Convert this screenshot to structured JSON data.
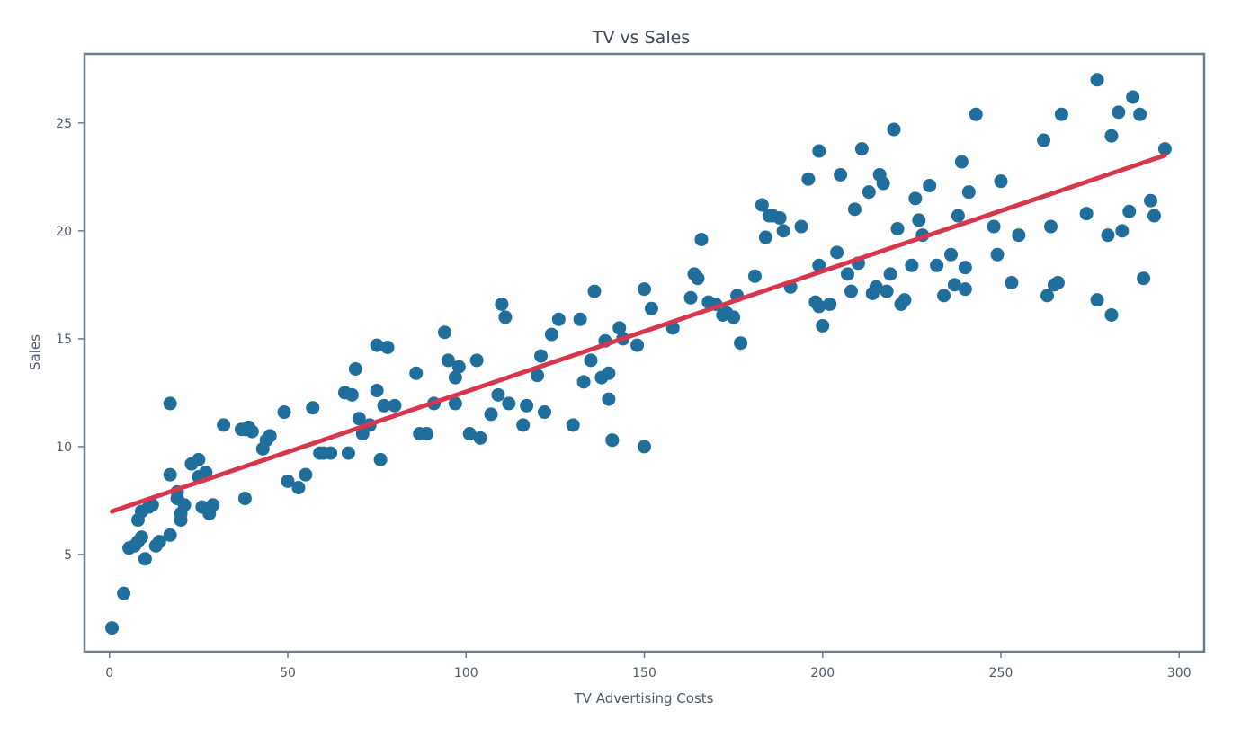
{
  "chart_data": {
    "type": "scatter",
    "title": "TV vs Sales",
    "xlabel": "TV Advertising Costs",
    "ylabel": "Sales",
    "xlim": [
      -7,
      307
    ],
    "ylim": [
      0.5,
      28.2
    ],
    "xticks": [
      0,
      50,
      100,
      150,
      200,
      250,
      300
    ],
    "yticks": [
      5,
      10,
      15,
      20,
      25
    ],
    "grid": false,
    "legend": "none",
    "colors": {
      "points": "#1f6e9c",
      "fit_line": "#d8364c",
      "axes": "#6b7c8c"
    },
    "series": [
      {
        "kind": "scatter",
        "points": [
          [
            0.7,
            1.6
          ],
          [
            4,
            3.2
          ],
          [
            5.5,
            5.3
          ],
          [
            7,
            5.4
          ],
          [
            8,
            5.6
          ],
          [
            9,
            5.8
          ],
          [
            8,
            6.6
          ],
          [
            9,
            7.0
          ],
          [
            10,
            4.8
          ],
          [
            11,
            7.2
          ],
          [
            12,
            7.3
          ],
          [
            13,
            5.4
          ],
          [
            14,
            5.6
          ],
          [
            17,
            8.7
          ],
          [
            17,
            12.0
          ],
          [
            17,
            5.9
          ],
          [
            19,
            7.6
          ],
          [
            19,
            7.9
          ],
          [
            20,
            6.6
          ],
          [
            20,
            6.9
          ],
          [
            21,
            7.3
          ],
          [
            23,
            9.2
          ],
          [
            25,
            8.6
          ],
          [
            25,
            9.4
          ],
          [
            26,
            7.2
          ],
          [
            27,
            8.8
          ],
          [
            28,
            6.9
          ],
          [
            29,
            7.3
          ],
          [
            32,
            11.0
          ],
          [
            37,
            10.8
          ],
          [
            38,
            10.8
          ],
          [
            38,
            7.6
          ],
          [
            39,
            10.9
          ],
          [
            40,
            10.7
          ],
          [
            43,
            9.9
          ],
          [
            44,
            10.3
          ],
          [
            45,
            10.5
          ],
          [
            49,
            11.6
          ],
          [
            50,
            8.4
          ],
          [
            53,
            8.1
          ],
          [
            55,
            8.7
          ],
          [
            57,
            11.8
          ],
          [
            59,
            9.7
          ],
          [
            60,
            9.7
          ],
          [
            62,
            9.7
          ],
          [
            66,
            12.5
          ],
          [
            67,
            9.7
          ],
          [
            68,
            12.4
          ],
          [
            69,
            13.6
          ],
          [
            70,
            11.3
          ],
          [
            71,
            10.6
          ],
          [
            73,
            11.0
          ],
          [
            75,
            12.6
          ],
          [
            75,
            14.7
          ],
          [
            76,
            9.4
          ],
          [
            77,
            11.9
          ],
          [
            78,
            14.6
          ],
          [
            80,
            11.9
          ],
          [
            86,
            13.4
          ],
          [
            87,
            10.6
          ],
          [
            89,
            10.6
          ],
          [
            91,
            12.0
          ],
          [
            94,
            15.3
          ],
          [
            95,
            14.0
          ],
          [
            97,
            13.2
          ],
          [
            97,
            12.0
          ],
          [
            98,
            13.7
          ],
          [
            101,
            10.6
          ],
          [
            103,
            14.0
          ],
          [
            104,
            10.4
          ],
          [
            107,
            11.5
          ],
          [
            109,
            12.4
          ],
          [
            110,
            16.6
          ],
          [
            111,
            16.0
          ],
          [
            112,
            12.0
          ],
          [
            116,
            11.0
          ],
          [
            117,
            11.9
          ],
          [
            120,
            13.3
          ],
          [
            121,
            14.2
          ],
          [
            122,
            11.6
          ],
          [
            124,
            15.2
          ],
          [
            126,
            15.9
          ],
          [
            130,
            11.0
          ],
          [
            132,
            15.9
          ],
          [
            133,
            13.0
          ],
          [
            135,
            14.0
          ],
          [
            136,
            17.2
          ],
          [
            138,
            13.2
          ],
          [
            139,
            14.9
          ],
          [
            140,
            13.4
          ],
          [
            140,
            12.2
          ],
          [
            141,
            10.3
          ],
          [
            141,
            10.3
          ],
          [
            143,
            15.5
          ],
          [
            144,
            15.0
          ],
          [
            148,
            14.7
          ],
          [
            150,
            10.0
          ],
          [
            150,
            17.3
          ],
          [
            152,
            16.4
          ],
          [
            158,
            15.5
          ],
          [
            163,
            16.9
          ],
          [
            164,
            18.0
          ],
          [
            165,
            17.8
          ],
          [
            166,
            19.6
          ],
          [
            168,
            16.7
          ],
          [
            170,
            16.6
          ],
          [
            172,
            16.1
          ],
          [
            173,
            16.2
          ],
          [
            175,
            16.0
          ],
          [
            176,
            17.0
          ],
          [
            177,
            14.8
          ],
          [
            181,
            17.9
          ],
          [
            183,
            21.2
          ],
          [
            184,
            19.7
          ],
          [
            185,
            20.7
          ],
          [
            186,
            20.7
          ],
          [
            188,
            20.6
          ],
          [
            189,
            20.0
          ],
          [
            191,
            17.4
          ],
          [
            194,
            20.2
          ],
          [
            196,
            22.4
          ],
          [
            198,
            16.7
          ],
          [
            199,
            23.7
          ],
          [
            199,
            18.4
          ],
          [
            199,
            16.5
          ],
          [
            200,
            15.6
          ],
          [
            202,
            16.6
          ],
          [
            204,
            19.0
          ],
          [
            205,
            22.6
          ],
          [
            207,
            18.0
          ],
          [
            208,
            17.2
          ],
          [
            209,
            21.0
          ],
          [
            210,
            18.5
          ],
          [
            211,
            23.8
          ],
          [
            213,
            21.8
          ],
          [
            214,
            17.1
          ],
          [
            215,
            17.4
          ],
          [
            216,
            22.6
          ],
          [
            217,
            22.2
          ],
          [
            218,
            17.2
          ],
          [
            219,
            18.0
          ],
          [
            220,
            24.7
          ],
          [
            221,
            20.1
          ],
          [
            222,
            16.6
          ],
          [
            223,
            16.8
          ],
          [
            225,
            18.4
          ],
          [
            226,
            21.5
          ],
          [
            227,
            20.5
          ],
          [
            228,
            19.8
          ],
          [
            230,
            22.1
          ],
          [
            232,
            18.4
          ],
          [
            234,
            17.0
          ],
          [
            236,
            18.9
          ],
          [
            237,
            17.5
          ],
          [
            238,
            20.7
          ],
          [
            239,
            23.2
          ],
          [
            240,
            17.3
          ],
          [
            240,
            18.3
          ],
          [
            241,
            21.8
          ],
          [
            243,
            25.4
          ],
          [
            248,
            20.2
          ],
          [
            249,
            18.9
          ],
          [
            250,
            22.3
          ],
          [
            253,
            17.6
          ],
          [
            255,
            19.8
          ],
          [
            262,
            24.2
          ],
          [
            263,
            17.0
          ],
          [
            264,
            20.2
          ],
          [
            265,
            17.5
          ],
          [
            266,
            17.6
          ],
          [
            267,
            25.4
          ],
          [
            274,
            20.8
          ],
          [
            277,
            27.0
          ],
          [
            277,
            16.8
          ],
          [
            280,
            19.8
          ],
          [
            281,
            24.4
          ],
          [
            281,
            16.1
          ],
          [
            283,
            25.5
          ],
          [
            284,
            20.0
          ],
          [
            286,
            20.9
          ],
          [
            287,
            26.2
          ],
          [
            289,
            25.4
          ],
          [
            290,
            17.8
          ],
          [
            292,
            21.4
          ],
          [
            293,
            20.7
          ],
          [
            296,
            23.8
          ]
        ]
      },
      {
        "kind": "line",
        "points": [
          [
            0.7,
            7.0
          ],
          [
            296,
            23.5
          ]
        ]
      }
    ]
  }
}
